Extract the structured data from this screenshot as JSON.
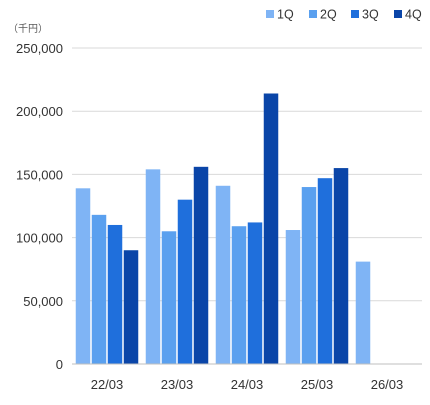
{
  "chart_data": {
    "type": "bar",
    "title": "",
    "unit_label": "（千円）",
    "xlabel": "",
    "ylabel": "",
    "categories": [
      "22/03",
      "23/03",
      "24/03",
      "25/03",
      "26/03"
    ],
    "series": [
      {
        "name": "1Q",
        "color": "#7fb4f5",
        "values": [
          139000,
          154000,
          141000,
          106000,
          81000
        ]
      },
      {
        "name": "2Q",
        "color": "#5aa0ef",
        "values": [
          118000,
          105000,
          109000,
          140000,
          null
        ]
      },
      {
        "name": "3Q",
        "color": "#1f6fdc",
        "values": [
          110000,
          130000,
          112000,
          147000,
          null
        ]
      },
      {
        "name": "4Q",
        "color": "#0a45a8",
        "values": [
          90000,
          156000,
          214000,
          155000,
          null
        ]
      }
    ],
    "ylim": [
      0,
      250000
    ],
    "yticks": [
      0,
      50000,
      100000,
      150000,
      200000,
      250000
    ],
    "ytick_labels": [
      "0",
      "50,000",
      "100,000",
      "150,000",
      "200,000",
      "250,000"
    ],
    "grid": true,
    "legend_position": "top-right"
  }
}
